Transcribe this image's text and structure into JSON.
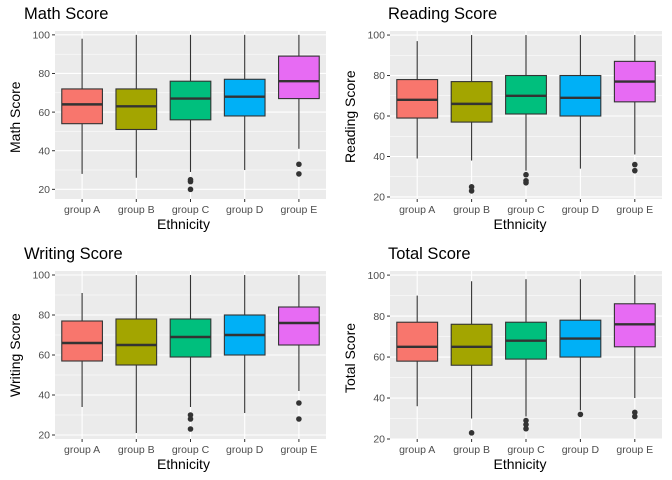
{
  "chart_data": [
    {
      "type": "boxplot",
      "title": "Math Score",
      "xlabel": "Ethnicity",
      "ylabel": "Math Score",
      "ylim": [
        15,
        102
      ],
      "yticks": [
        20,
        40,
        60,
        80,
        100
      ],
      "categories": [
        "group A",
        "group B",
        "group C",
        "group D",
        "group E"
      ],
      "colors": [
        "#F8766D",
        "#A3A500",
        "#00BF7D",
        "#00B0F6",
        "#E76BF3"
      ],
      "boxes": [
        {
          "min": 28,
          "q1": 54,
          "median": 64,
          "q3": 72,
          "max": 98,
          "outliers": []
        },
        {
          "min": 26,
          "q1": 51,
          "median": 63,
          "q3": 72,
          "max": 100,
          "outliers": []
        },
        {
          "min": 29,
          "q1": 56,
          "median": 67,
          "q3": 76,
          "max": 100,
          "outliers": [
            24,
            25,
            20
          ]
        },
        {
          "min": 30,
          "q1": 58,
          "median": 68,
          "q3": 77,
          "max": 100,
          "outliers": []
        },
        {
          "min": 41,
          "q1": 67,
          "median": 76,
          "q3": 89,
          "max": 100,
          "outliers": [
            33,
            28
          ]
        }
      ],
      "grid": true,
      "legend": "none"
    },
    {
      "type": "boxplot",
      "title": "Reading Score",
      "xlabel": "Ethnicity",
      "ylabel": "Reading Score",
      "ylim": [
        19,
        102
      ],
      "yticks": [
        20,
        40,
        60,
        80,
        100
      ],
      "categories": [
        "group A",
        "group B",
        "group C",
        "group D",
        "group E"
      ],
      "colors": [
        "#F8766D",
        "#A3A500",
        "#00BF7D",
        "#00B0F6",
        "#E76BF3"
      ],
      "boxes": [
        {
          "min": 39,
          "q1": 59,
          "median": 68,
          "q3": 78,
          "max": 97,
          "outliers": []
        },
        {
          "min": 38,
          "q1": 57,
          "median": 66,
          "q3": 77,
          "max": 100,
          "outliers": [
            25,
            23
          ]
        },
        {
          "min": 33,
          "q1": 61,
          "median": 70,
          "q3": 80,
          "max": 100,
          "outliers": [
            31,
            28,
            27
          ]
        },
        {
          "min": 34,
          "q1": 60,
          "median": 69,
          "q3": 80,
          "max": 100,
          "outliers": []
        },
        {
          "min": 41,
          "q1": 67,
          "median": 77,
          "q3": 87,
          "max": 100,
          "outliers": [
            36,
            33
          ]
        }
      ],
      "grid": true,
      "legend": "none"
    },
    {
      "type": "boxplot",
      "title": "Writing Score",
      "xlabel": "Ethnicity",
      "ylabel": "Writing Score",
      "ylim": [
        18,
        102
      ],
      "yticks": [
        20,
        40,
        60,
        80,
        100
      ],
      "categories": [
        "group A",
        "group B",
        "group C",
        "group D",
        "group E"
      ],
      "colors": [
        "#F8766D",
        "#A3A500",
        "#00BF7D",
        "#00B0F6",
        "#E76BF3"
      ],
      "boxes": [
        {
          "min": 34,
          "q1": 57,
          "median": 66,
          "q3": 77,
          "max": 91,
          "outliers": []
        },
        {
          "min": 21,
          "q1": 55,
          "median": 65,
          "q3": 78,
          "max": 100,
          "outliers": []
        },
        {
          "min": 34,
          "q1": 59,
          "median": 69,
          "q3": 78,
          "max": 100,
          "outliers": [
            30,
            28,
            23
          ]
        },
        {
          "min": 31,
          "q1": 60,
          "median": 70,
          "q3": 80,
          "max": 100,
          "outliers": []
        },
        {
          "min": 42,
          "q1": 65,
          "median": 76,
          "q3": 84,
          "max": 100,
          "outliers": [
            36,
            28
          ]
        }
      ],
      "grid": true,
      "legend": "none"
    },
    {
      "type": "boxplot",
      "title": "Total Score",
      "xlabel": "Ethnicity",
      "ylabel": "Total Score",
      "ylim": [
        20,
        102
      ],
      "yticks": [
        20,
        40,
        60,
        80,
        100
      ],
      "categories": [
        "group A",
        "group B",
        "group C",
        "group D",
        "group E"
      ],
      "colors": [
        "#F8766D",
        "#A3A500",
        "#00BF7D",
        "#00B0F6",
        "#E76BF3"
      ],
      "boxes": [
        {
          "min": 36,
          "q1": 58,
          "median": 65,
          "q3": 77,
          "max": 90,
          "outliers": []
        },
        {
          "min": 30,
          "q1": 56,
          "median": 65,
          "q3": 76,
          "max": 97,
          "outliers": [
            23
          ]
        },
        {
          "min": 31,
          "q1": 59,
          "median": 68,
          "q3": 77,
          "max": 98,
          "outliers": [
            29,
            27,
            25
          ]
        },
        {
          "min": 34,
          "q1": 60,
          "median": 69,
          "q3": 78,
          "max": 98,
          "outliers": [
            32
          ]
        },
        {
          "min": 40,
          "q1": 65,
          "median": 76,
          "q3": 86,
          "max": 100,
          "outliers": [
            33,
            31
          ]
        }
      ],
      "grid": true,
      "legend": "none"
    }
  ]
}
